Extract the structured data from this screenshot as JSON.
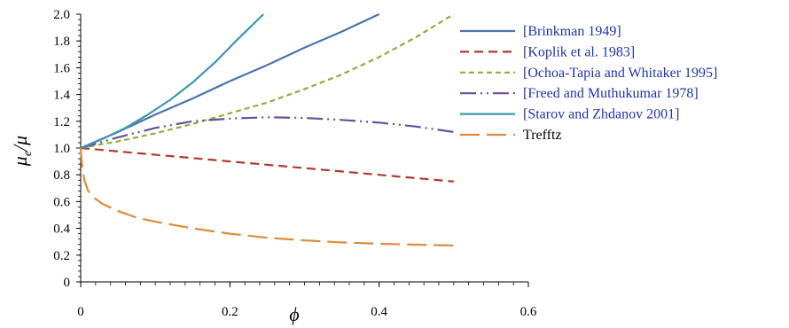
{
  "chart_data": {
    "type": "line",
    "xlabel": "ϕ",
    "ylabel_main": "μ",
    "ylabel_sub": "e",
    "ylabel_rest": "/μ",
    "xlim": [
      0,
      0.6
    ],
    "ylim": [
      0,
      2.0
    ],
    "x_ticks": [
      0,
      0.2,
      0.4,
      0.6
    ],
    "x_tick_labels": [
      "0",
      "0.2",
      "0.4",
      "0.6"
    ],
    "y_ticks": [
      0,
      0.2,
      0.4,
      0.6,
      0.8,
      1.0,
      1.2,
      1.4,
      1.6,
      1.8,
      2.0
    ],
    "y_tick_labels": [
      "0",
      "0.2",
      "0.4",
      "0.6",
      "0.8",
      "1.0",
      "1.2",
      "1.4",
      "1.6",
      "1.8",
      "2.0"
    ],
    "grid": false,
    "legend_position": "right",
    "series": [
      {
        "name": "[Brinkman 1949]",
        "color": "#4a72b0",
        "dash": "solid",
        "label_color": "#1f33b0",
        "x": [
          0,
          0.05,
          0.1,
          0.15,
          0.2,
          0.25,
          0.3,
          0.35,
          0.4
        ],
        "y": [
          1.0,
          1.12,
          1.25,
          1.37,
          1.5,
          1.62,
          1.75,
          1.87,
          2.0
        ]
      },
      {
        "name": "[Koplik et al. 1983]",
        "color": "#b03a2e",
        "dash": "dash",
        "label_color": "#1f33b0",
        "x": [
          0,
          0.1,
          0.2,
          0.3,
          0.4,
          0.5
        ],
        "y": [
          1.0,
          0.95,
          0.9,
          0.85,
          0.8,
          0.75
        ]
      },
      {
        "name": "[Ochoa-Tapia and Whitaker 1995]",
        "color": "#8fae3c",
        "dash": "shortdash",
        "label_color": "#1f33b0",
        "x": [
          0,
          0.05,
          0.1,
          0.15,
          0.2,
          0.25,
          0.3,
          0.35,
          0.4,
          0.45,
          0.5
        ],
        "y": [
          1.0,
          1.05,
          1.11,
          1.18,
          1.26,
          1.34,
          1.44,
          1.55,
          1.68,
          1.83,
          2.0
        ]
      },
      {
        "name": "[Freed and Muthukumar 1978]",
        "color": "#6b4f9a",
        "dash": "dashdotdot",
        "label_color": "#1f33b0",
        "x": [
          0,
          0.05,
          0.1,
          0.15,
          0.2,
          0.25,
          0.3,
          0.35,
          0.4,
          0.45,
          0.5
        ],
        "y": [
          1.0,
          1.08,
          1.15,
          1.2,
          1.22,
          1.23,
          1.225,
          1.21,
          1.19,
          1.16,
          1.12
        ]
      },
      {
        "name": "[Starov and Zhdanov 2001]",
        "color": "#3a98ae",
        "dash": "solid",
        "label_color": "#1f33b0",
        "x": [
          0,
          0.03,
          0.06,
          0.09,
          0.12,
          0.15,
          0.18,
          0.21,
          0.245
        ],
        "y": [
          1.0,
          1.07,
          1.15,
          1.25,
          1.36,
          1.49,
          1.64,
          1.81,
          2.0
        ]
      },
      {
        "name": "Trefftz",
        "color": "#e08a3a",
        "dash": "longdash",
        "label_color": "#000000",
        "x": [
          0,
          0.002,
          0.005,
          0.01,
          0.02,
          0.03,
          0.05,
          0.075,
          0.1,
          0.15,
          0.2,
          0.25,
          0.3,
          0.35,
          0.4,
          0.45,
          0.5
        ],
        "y": [
          1.0,
          0.86,
          0.76,
          0.68,
          0.62,
          0.58,
          0.53,
          0.48,
          0.45,
          0.4,
          0.36,
          0.33,
          0.31,
          0.295,
          0.285,
          0.278,
          0.272
        ]
      }
    ]
  }
}
